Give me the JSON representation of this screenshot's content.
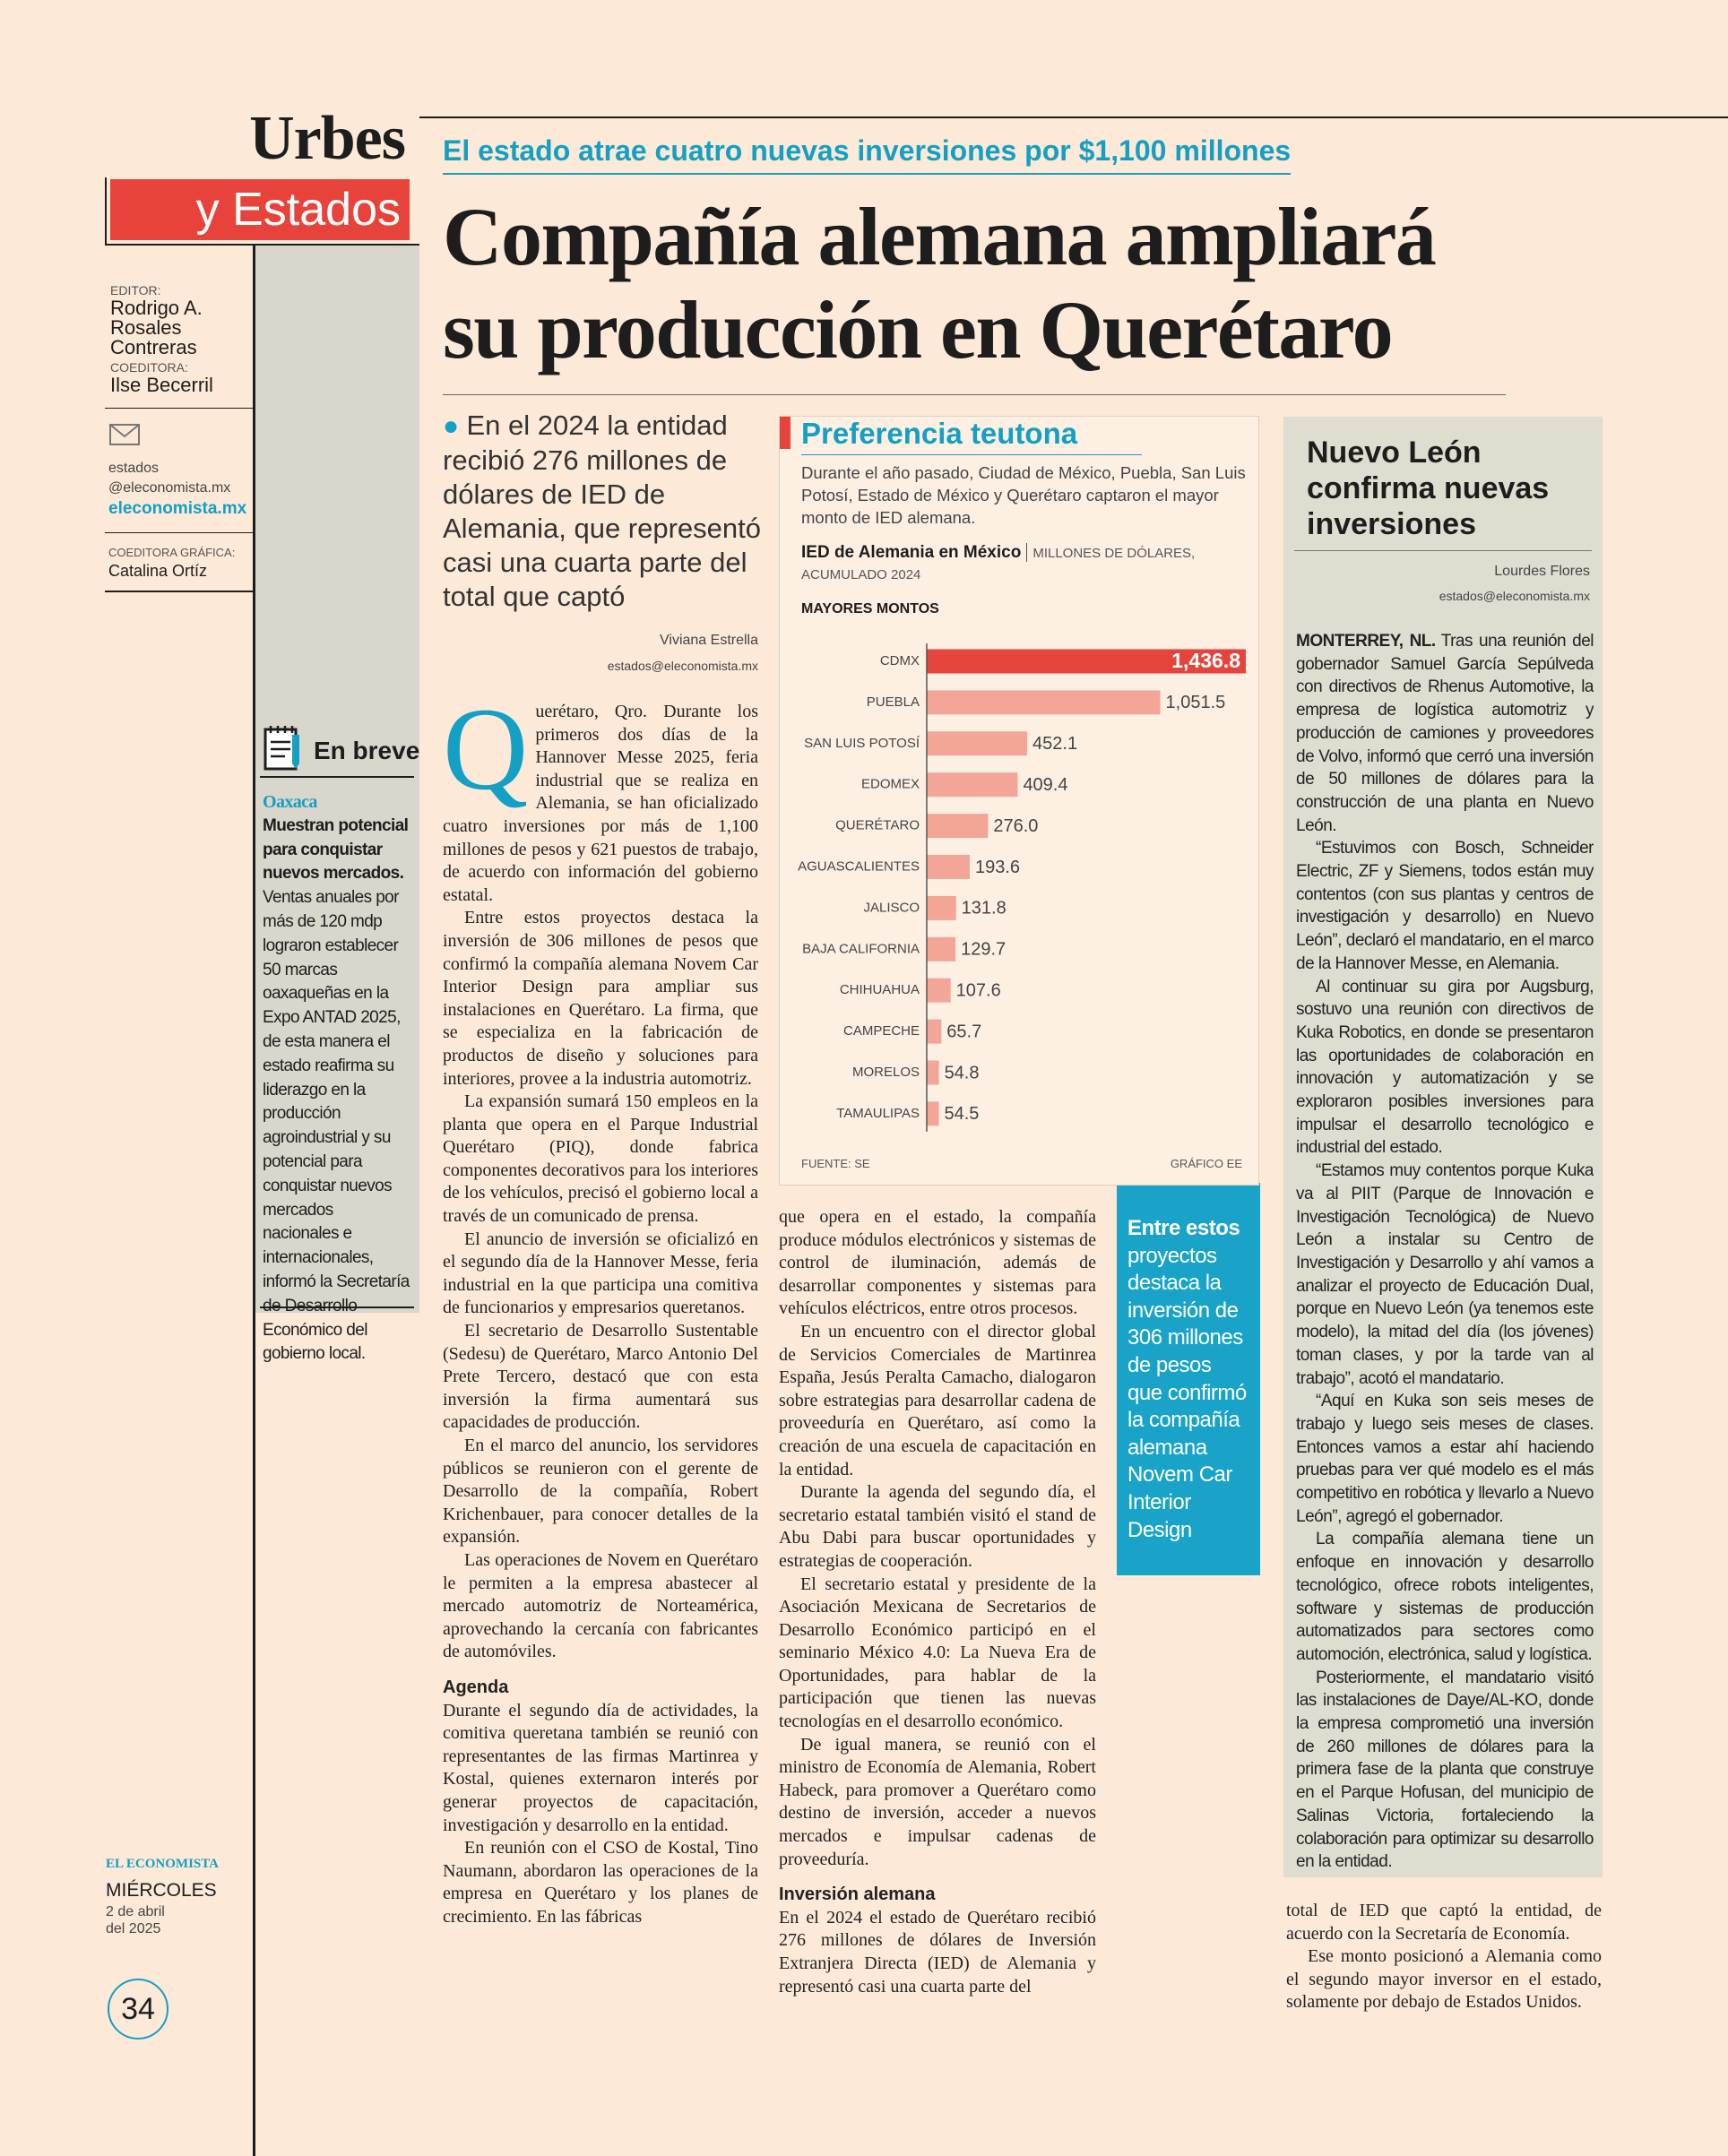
{
  "masthead": {
    "section_top": "Urbes",
    "section_bottom": "y Estados"
  },
  "staff": {
    "editor_label": "EDITOR:",
    "editor": "Rodrigo A. Rosales Contreras",
    "coeditor_label": "COEDITORA:",
    "coeditor": "Ilse Becerril",
    "email": "estados @eleconomista.mx",
    "site": "eleconomista.mx",
    "graphics_label": "COEDITORA GRÁFICA:",
    "graphics": "Catalina Ortíz"
  },
  "brief": {
    "heading": "En breve",
    "place": "Oaxaca",
    "headline": "Muestran potencial para conquistar nuevos mercados.",
    "text": "Ventas anuales por más de 120 mdp lograron establecer 50 marcas oaxaqueñas en la Expo ANTAD 2025, de esta manera el estado reafirma su liderazgo en la producción agroindustrial y su potencial para conquistar nuevos mercados nacionales e internacionales, informó la Secretaría de Desarrollo Económico del gobierno local."
  },
  "footer": {
    "brand": "EL ECONOMISTA",
    "weekday": "MIÉRCOLES",
    "date": "2 de abril del 2025",
    "page": "34"
  },
  "article": {
    "kicker": "El estado atrae cuatro nuevas inversiones por $1,100 millones",
    "headline": "Compañía alemana ampliará su producción en Querétaro",
    "deck": "En el 2024 la entidad recibió 276 millones de dólares de IED de Alemania, que representó casi una cuarta parte del total que captó",
    "author": "Viviana Estrella",
    "author_email": "estados@eleconomista.mx",
    "columns": [
      [
        {
          "text": "Querétaro, Qro. Durante los primeros dos días de la Hannover Messe 2025, feria industrial que se realiza en Alemania, se han oficializado cuatro inversiones por más de 1,100 millones de pesos y 621 puestos de trabajo, de acuerdo con información del gobierno estatal."
        },
        {
          "text": "Entre estos proyectos destaca la inversión de 306 millones de pesos que confirmó la compañía alemana Novem Car Interior Design para ampliar sus instalaciones en Querétaro. La firma, que se especializa en la fabricación de productos de diseño y soluciones para interiores, provee a la industria automotriz."
        },
        {
          "text": "La expansión sumará 150 empleos en la planta que opera en el Parque Industrial Querétaro (PIQ), donde fabrica componentes decorativos para los interiores de los vehículos, precisó el gobierno local a través de un comunicado de prensa."
        },
        {
          "text": "El anuncio de inversión se oficializó en el segundo día de la Hannover Messe, feria industrial en la que participa una comitiva de funcionarios y empresarios queretanos."
        },
        {
          "text": "El secretario de Desarrollo Sustentable (Sedesu) de Querétaro, Marco Antonio Del Prete Tercero, destacó que con esta inversión la firma aumentará sus capacidades de producción."
        },
        {
          "text": "En el marco del anuncio, los servidores públicos se reunieron con el gerente de Desarrollo de la compañía, Robert Krichenbauer, para conocer detalles de la expansión."
        },
        {
          "text": "Las operaciones de Novem en Querétaro le permiten a la empresa abastecer al mercado automotriz de Norteamérica, aprovechando la cercanía con fabricantes de automóviles."
        },
        {
          "heading": "Agenda"
        },
        {
          "text": "Durante el segundo día de actividades, la comitiva queretana también se reunió con representantes de las firmas Martinrea y Kostal, quienes externaron interés por generar proyectos de capacitación, investigación y desarrollo en la entidad."
        },
        {
          "text": "En reunión con el CSO de Kostal, Tino Naumann, abordaron las operaciones de la empresa en Querétaro y los planes de crecimiento. En las fábricas"
        }
      ],
      [
        {
          "text": "que opera en el estado, la compañía produce módulos electrónicos y sistemas de control de iluminación, además de desarrollar componentes y sistemas para vehículos eléctricos, entre otros procesos."
        },
        {
          "text": "En un encuentro con el director global de Servicios Comerciales de Martinrea España, Jesús Peralta Camacho, dialogaron sobre estrategias para desarrollar cadena de proveeduría en Querétaro, así como la creación de una escuela de capacitación en la entidad."
        },
        {
          "text": "Durante la agenda del segundo día, el secretario estatal también visitó el stand de Abu Dabi para buscar oportunidades y estrategias de cooperación."
        },
        {
          "text": "El secretario estatal y presidente de la Asociación Mexicana de Secretarios de Desarrollo Económico participó en el seminario México 4.0: La Nueva Era de Oportunidades, para hablar de la participación que tienen las nuevas tecnologías en el desarrollo económico."
        },
        {
          "text": "De igual manera, se reunió con el ministro de Economía de Alemania, Robert Habeck, para promover a Querétaro como destino de inversión, acceder a nuevos mercados e impulsar cadenas de proveeduría."
        },
        {
          "heading": "Inversión alemana"
        },
        {
          "text": "En el 2024 el estado de Querétaro recibió 276 millones de dólares de Inversión Extranjera Directa (IED) de Alemania y representó casi una cuarta parte del"
        }
      ],
      [
        {
          "text": "total de IED que captó la entidad, de acuerdo con la Secretaría de Economía."
        },
        {
          "text": "Ese monto posicionó a Alemania como el segundo mayor inversor en el estado, solamente por debajo de Estados Unidos."
        }
      ]
    ]
  },
  "pullquote": {
    "lead": "Entre estos",
    "text": "proyectos destaca la inversión de 306 millones de pesos que confirmó la compañía alemana Novem Car Interior Design"
  },
  "nuevo_leon": {
    "headline": "Nuevo León confirma nuevas inversiones",
    "author": "Lourdes Flores",
    "author_email": "estados@eleconomista.mx",
    "dateline": "MONTERREY, NL.",
    "paragraphs": [
      "Tras una reunión del gobernador Samuel García Sepúlveda con directivos de Rhenus Automotive, la empresa de logística automotriz y producción de camiones y proveedores de Volvo, informó que cerró una inversión de 50 millones de dólares para la construcción de una planta en Nuevo León.",
      "“Estuvimos con Bosch, Schneider Electric, ZF y Siemens, todos están muy contentos (con sus plantas y centros de investigación y desarrollo) en Nuevo León”, declaró el mandatario, en el marco de la Hannover Messe, en Alemania.",
      "Al continuar su gira por Augsburg, sostuvo una reunión con directivos de Kuka Robotics, en donde se presentaron las oportunidades de colaboración en innovación y automatización y se exploraron posibles inversiones para impulsar el desarrollo tecnológico e industrial del estado.",
      "“Estamos muy contentos porque Kuka va al PIIT (Parque de Innovación e Investigación Tecnológica) de Nuevo León a instalar su Centro de Investigación y Desarrollo y ahí vamos a analizar el proyecto de Educación Dual, porque en Nuevo León (ya tenemos este modelo), la mitad del día (los jóvenes) toman clases, y por la tarde van al trabajo”, acotó el mandatario.",
      "“Aquí en Kuka son seis meses de trabajo y luego seis meses de clases. Entonces vamos a estar ahí haciendo pruebas para ver qué modelo es el más competitivo en robótica y llevarlo a Nuevo León”, agregó el gobernador.",
      "La compañía alemana tiene un enfoque en innovación y desarrollo tecnológico, ofrece robots inteligentes, software y sistemas de producción automatizados para sectores como automoción, electrónica, salud y logística.",
      "Posteriormente, el mandatario visitó las instalaciones de Daye/AL-KO, donde la empresa comprometió una inversión de 260 millones de dólares para la primera fase de la planta que construye en el Parque Hofusan, del municipio de Salinas Victoria, fortaleciendo la colaboración para optimizar su desarrollo en la entidad."
    ]
  },
  "chart_data": {
    "type": "bar",
    "orientation": "horizontal",
    "title": "Preferencia teutona",
    "description": "Durante el año pasado, Ciudad de México, Puebla, San Luis Potosí, Estado de México y Querétaro captaron el mayor monto de IED alemana.",
    "subtitle": "IED de Alemania en México",
    "unit": "MILLONES DE DÓLARES, ACUMULADO 2024",
    "label": "MAYORES MONTOS",
    "categories": [
      "CDMX",
      "PUEBLA",
      "SAN LUIS POTOSÍ",
      "EDOMEX",
      "QUERÉTARO",
      "AGUASCALIENTES",
      "JALISCO",
      "BAJA CALIFORNIA",
      "CHIHUAHUA",
      "CAMPECHE",
      "MORELOS",
      "TAMAULIPAS"
    ],
    "values": [
      1436.8,
      1051.5,
      452.1,
      409.4,
      276.0,
      193.6,
      131.8,
      129.7,
      107.6,
      65.7,
      54.8,
      54.5
    ],
    "value_labels": [
      "1,436.8",
      "1,051.5",
      "452.1",
      "409.4",
      "276.0",
      "193.6",
      "131.8",
      "129.7",
      "107.6",
      "65.7",
      "54.8",
      "54.5"
    ],
    "colors": [
      "#e5443c",
      "#f3a597",
      "#f3a597",
      "#f3a597",
      "#f3a597",
      "#f3a597",
      "#f3a597",
      "#f3a597",
      "#f3a597",
      "#f3a597",
      "#f3a597",
      "#f3a597"
    ],
    "source": "FUENTE: SE",
    "credit": "GRÁFICO EE"
  }
}
